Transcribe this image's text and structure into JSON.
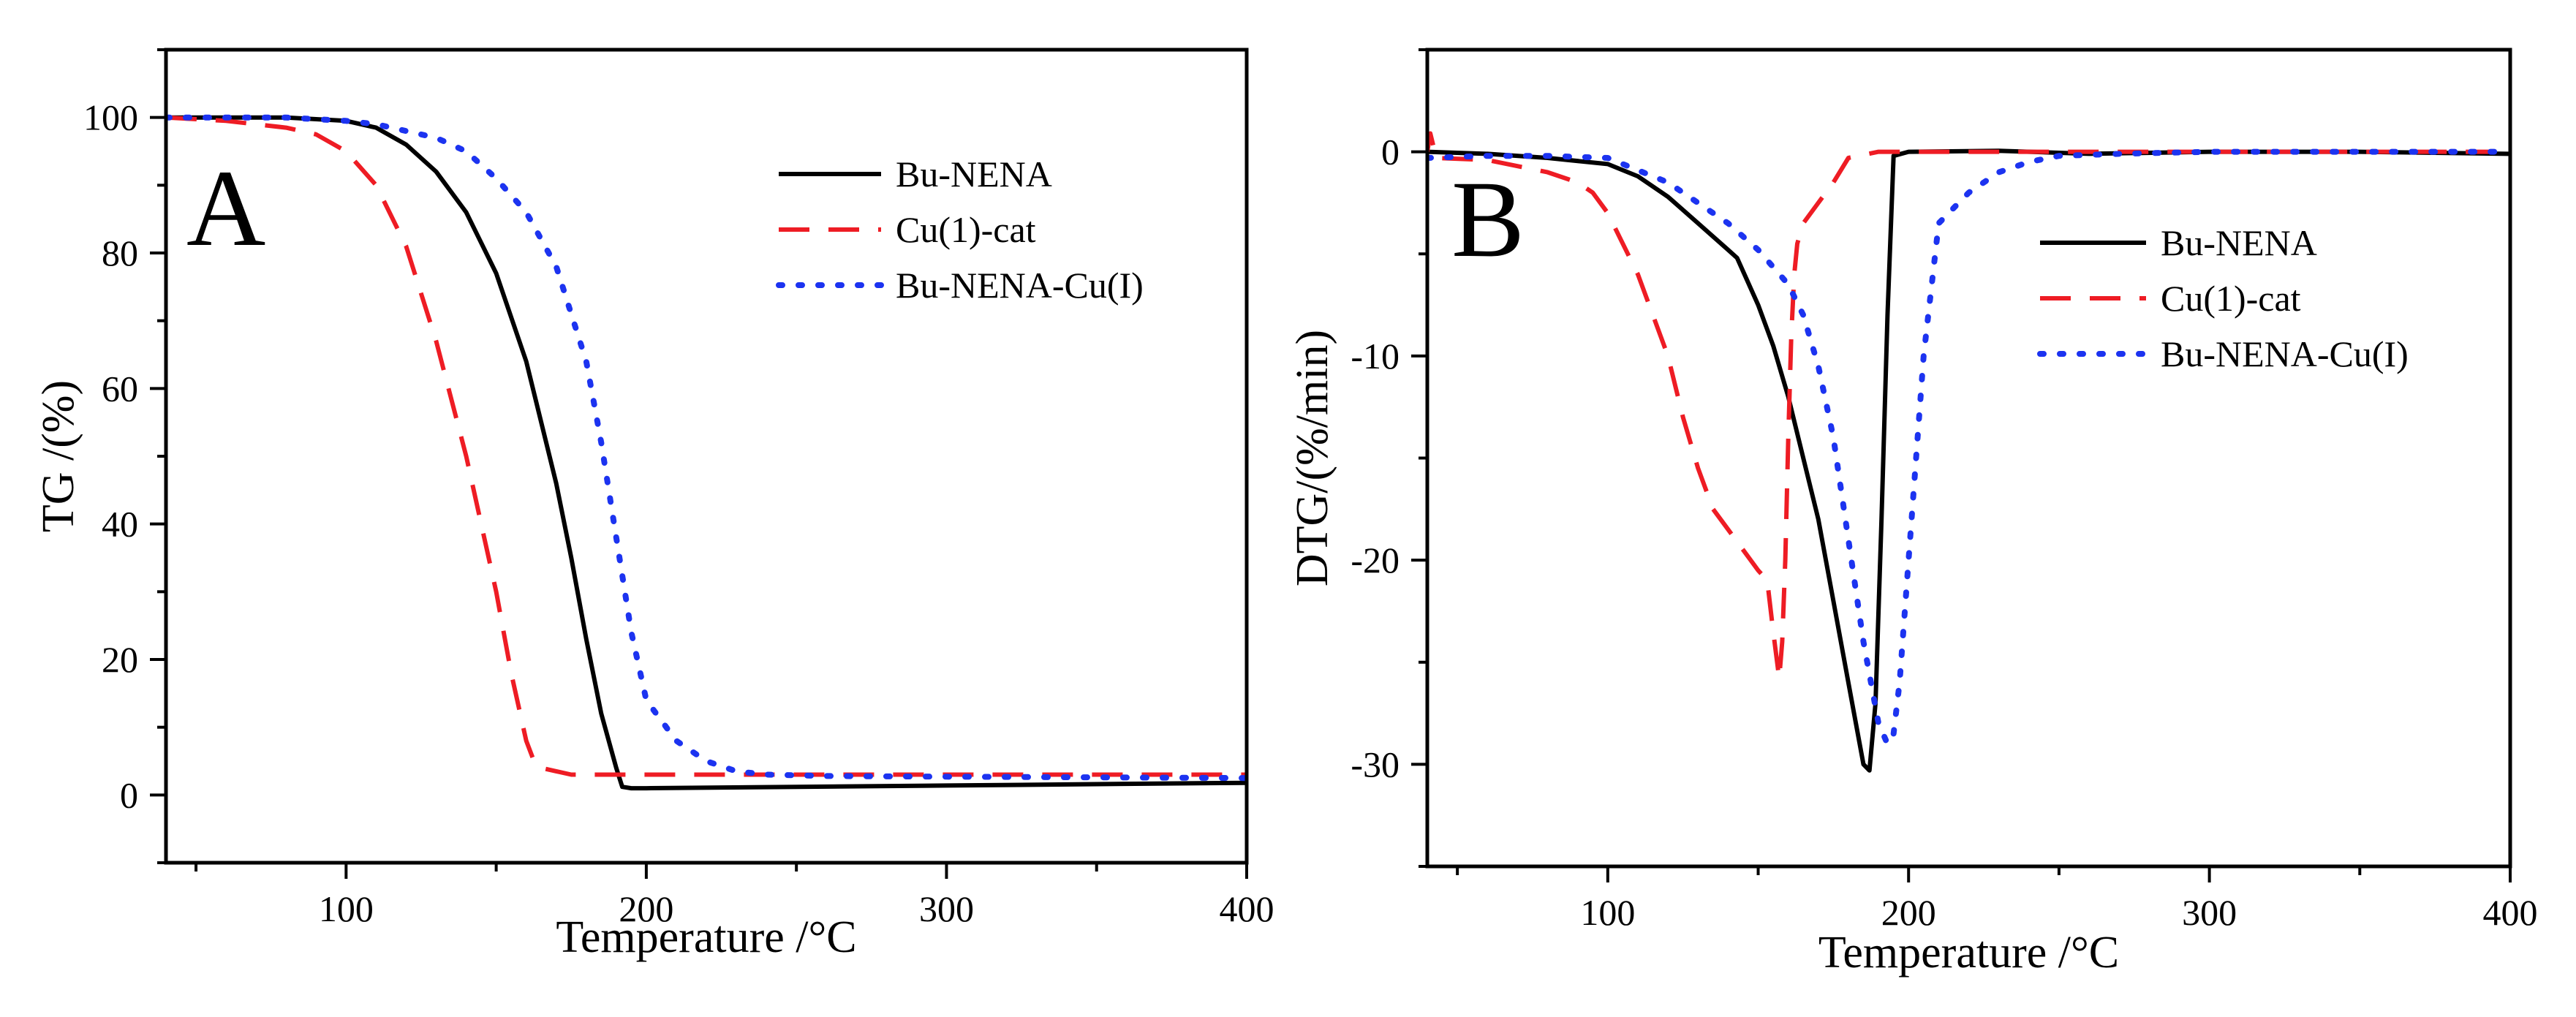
{
  "chart_data": [
    {
      "type": "line",
      "panel_label": "A",
      "xlabel": "Temperature /°C",
      "ylabel": "TG /(%)",
      "xlim": [
        40,
        400
      ],
      "ylim": [
        -10,
        110
      ],
      "xticks": [
        100,
        200,
        300,
        400
      ],
      "yticks": [
        0,
        20,
        40,
        60,
        80,
        100
      ],
      "legend_position": "top-right",
      "series": [
        {
          "name": "Bu-NENA",
          "color": "#000000",
          "dash": "solid",
          "x": [
            40,
            60,
            80,
            100,
            110,
            120,
            130,
            140,
            150,
            160,
            170,
            175,
            180,
            185,
            190,
            192,
            195,
            200,
            250,
            300,
            350,
            400
          ],
          "y": [
            100,
            100,
            100,
            99.5,
            98.5,
            96,
            92,
            86,
            77,
            64,
            46,
            35,
            23,
            12,
            4,
            1.2,
            1,
            1,
            1.2,
            1.4,
            1.6,
            1.8
          ]
        },
        {
          "name": "Cu(1)-cat",
          "color": "#ee1c24",
          "dash": "dashed",
          "x": [
            40,
            60,
            80,
            90,
            100,
            110,
            120,
            130,
            140,
            145,
            150,
            155,
            160,
            163,
            165,
            170,
            175,
            180,
            190,
            200,
            250,
            300,
            350,
            400
          ],
          "y": [
            100,
            99.5,
            98.5,
            97.5,
            95,
            90,
            81,
            67,
            50,
            40,
            30,
            18,
            8,
            4.5,
            4,
            3.5,
            3,
            3,
            3,
            3,
            3,
            3,
            3,
            3
          ]
        },
        {
          "name": "Bu-NENA-Cu(I)",
          "color": "#1c33f0",
          "dash": "dotted",
          "x": [
            40,
            60,
            80,
            100,
            110,
            120,
            130,
            140,
            150,
            160,
            170,
            180,
            185,
            190,
            195,
            200,
            210,
            220,
            230,
            240,
            260,
            300,
            350,
            400
          ],
          "y": [
            100,
            100,
            100,
            99.5,
            99,
            98,
            97,
            95,
            91,
            86,
            78,
            64,
            52,
            38,
            24,
            14,
            8,
            5,
            3.5,
            3,
            2.8,
            2.7,
            2.6,
            2.5
          ]
        }
      ]
    },
    {
      "type": "line",
      "panel_label": "B",
      "xlabel": "Temperature /°C",
      "ylabel": "DTG/(%/min)",
      "xlim": [
        40,
        400
      ],
      "ylim": [
        -35,
        5
      ],
      "xticks": [
        100,
        200,
        300,
        400
      ],
      "yticks": [
        -30,
        -20,
        -10,
        0
      ],
      "legend_position": "middle-right",
      "series": [
        {
          "name": "Bu-NENA",
          "color": "#000000",
          "dash": "solid",
          "x": [
            40,
            60,
            80,
            100,
            110,
            120,
            130,
            140,
            143,
            150,
            155,
            160,
            165,
            170,
            175,
            180,
            185,
            187,
            189,
            191,
            193,
            195,
            200,
            230,
            260,
            300,
            350,
            400
          ],
          "y": [
            0,
            -0.1,
            -0.3,
            -0.6,
            -1.2,
            -2.2,
            -3.5,
            -4.8,
            -5.2,
            -7.5,
            -9.5,
            -12,
            -15,
            -18,
            -22,
            -26,
            -30,
            -30.3,
            -27,
            -18,
            -8,
            -0.2,
            0,
            0.05,
            -0.1,
            0,
            0,
            -0.1
          ]
        },
        {
          "name": "Cu(1)-cat",
          "color": "#ee1c24",
          "dash": "dashed",
          "x": [
            40,
            41,
            43,
            60,
            80,
            90,
            95,
            100,
            105,
            110,
            120,
            125,
            130,
            135,
            140,
            145,
            150,
            153,
            155,
            157,
            158,
            159,
            160,
            161,
            162,
            163,
            165,
            170,
            175,
            180,
            190,
            200,
            250,
            300,
            350,
            400
          ],
          "y": [
            0,
            0.9,
            -0.3,
            -0.4,
            -1,
            -1.5,
            -2,
            -3,
            -4.5,
            -6,
            -10,
            -13,
            -15.5,
            -17.5,
            -18.5,
            -19.5,
            -20.5,
            -21,
            -23.5,
            -25.8,
            -24,
            -20,
            -14,
            -9,
            -6,
            -4.5,
            -3.5,
            -2.5,
            -1.5,
            -0.3,
            0,
            0,
            0,
            0,
            0,
            0
          ]
        },
        {
          "name": "Bu-NENA-Cu(I)",
          "color": "#1c33f0",
          "dash": "dotted",
          "x": [
            40,
            60,
            80,
            100,
            120,
            140,
            150,
            160,
            165,
            170,
            175,
            180,
            185,
            190,
            193,
            195,
            197,
            200,
            205,
            210,
            220,
            230,
            240,
            250,
            270,
            300,
            350,
            400
          ],
          "y": [
            -0.3,
            -0.2,
            -0.2,
            -0.3,
            -1.5,
            -3.5,
            -4.8,
            -6.5,
            -8,
            -10.5,
            -14,
            -19,
            -24,
            -28,
            -29,
            -28.5,
            -26,
            -20,
            -10,
            -3.5,
            -2,
            -1,
            -0.5,
            -0.2,
            -0.1,
            0,
            0,
            0
          ]
        }
      ]
    }
  ]
}
